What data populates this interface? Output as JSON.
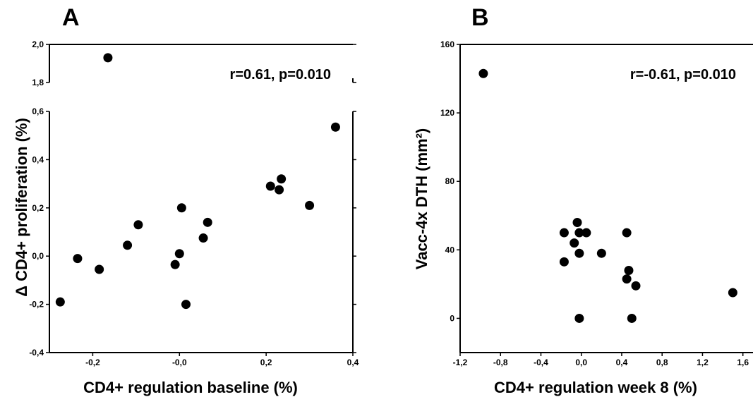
{
  "chart_data": [
    {
      "type": "scatter",
      "panel": "A",
      "annotation": "r=0.61, p=0.010",
      "xlabel": "CD4+ regulation baseline (%)",
      "ylabel": "Δ CD4+ proliferation (%)",
      "xlim": [
        -0.3,
        0.4
      ],
      "ylim_lower": [
        -0.4,
        0.6
      ],
      "ylim_upper": [
        1.8,
        2.0
      ],
      "axis_break": true,
      "x_ticks": [
        "-0,2",
        "-0,0",
        "0,2",
        "0,4"
      ],
      "x_tick_values": [
        -0.2,
        0.0,
        0.2,
        0.4
      ],
      "y_ticks_lower": [
        "-0,4",
        "-0,2",
        "0,0",
        "0,2",
        "0,4",
        "0,6"
      ],
      "y_tick_values_lower": [
        -0.4,
        -0.2,
        0.0,
        0.2,
        0.4,
        0.6
      ],
      "y_ticks_upper": [
        "1,8",
        "2,0"
      ],
      "y_tick_values_upper": [
        1.8,
        2.0
      ],
      "points": [
        {
          "x": -0.275,
          "y": -0.19
        },
        {
          "x": -0.235,
          "y": -0.01
        },
        {
          "x": -0.185,
          "y": -0.055
        },
        {
          "x": -0.165,
          "y": 1.93
        },
        {
          "x": -0.12,
          "y": 0.045
        },
        {
          "x": -0.095,
          "y": 0.13
        },
        {
          "x": -0.01,
          "y": -0.035
        },
        {
          "x": 0.0,
          "y": 0.01
        },
        {
          "x": 0.005,
          "y": 0.2
        },
        {
          "x": 0.015,
          "y": -0.2
        },
        {
          "x": 0.055,
          "y": 0.075
        },
        {
          "x": 0.065,
          "y": 0.14
        },
        {
          "x": 0.21,
          "y": 0.29
        },
        {
          "x": 0.23,
          "y": 0.275
        },
        {
          "x": 0.235,
          "y": 0.32
        },
        {
          "x": 0.3,
          "y": 0.21
        },
        {
          "x": 0.36,
          "y": 0.535
        }
      ]
    },
    {
      "type": "scatter",
      "panel": "B",
      "annotation": "r=-0.61, p=0.010",
      "xlabel": "CD4+ regulation week 8 (%)",
      "ylabel": "Vacc-4x DTH (mm²)",
      "xlim": [
        -1.2,
        1.7
      ],
      "ylim": [
        -20,
        160
      ],
      "x_ticks": [
        "-1,2",
        "-0,8",
        "-0,4",
        "0,0",
        "0,4",
        "0,8",
        "1,2",
        "1,6"
      ],
      "x_tick_values": [
        -1.2,
        -0.8,
        -0.4,
        0.0,
        0.4,
        0.8,
        1.2,
        1.6
      ],
      "y_ticks": [
        "0",
        "40",
        "80",
        "120",
        "160"
      ],
      "y_tick_values": [
        0,
        40,
        80,
        120,
        160
      ],
      "points": [
        {
          "x": -0.97,
          "y": 143
        },
        {
          "x": -0.17,
          "y": 33
        },
        {
          "x": -0.17,
          "y": 50
        },
        {
          "x": -0.07,
          "y": 44
        },
        {
          "x": -0.04,
          "y": 56
        },
        {
          "x": -0.02,
          "y": 50
        },
        {
          "x": -0.02,
          "y": 38
        },
        {
          "x": -0.02,
          "y": 0
        },
        {
          "x": 0.05,
          "y": 50
        },
        {
          "x": 0.2,
          "y": 38
        },
        {
          "x": 0.45,
          "y": 50
        },
        {
          "x": 0.45,
          "y": 23
        },
        {
          "x": 0.47,
          "y": 28
        },
        {
          "x": 0.5,
          "y": 0
        },
        {
          "x": 0.54,
          "y": 19
        },
        {
          "x": 1.5,
          "y": 15
        }
      ]
    }
  ]
}
